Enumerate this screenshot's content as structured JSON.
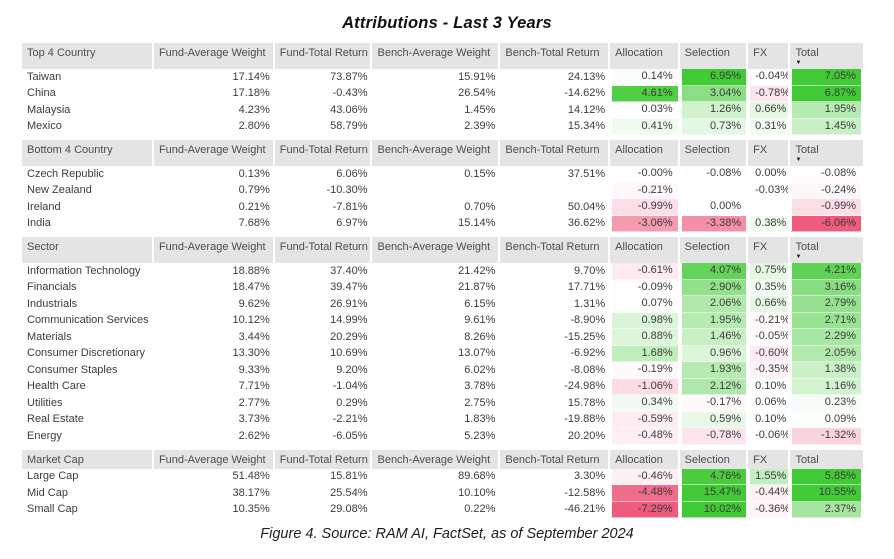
{
  "title": "Attributions - Last 3 Years",
  "caption": "Figure 4. Source: RAM AI, FactSet, as of September 2024",
  "colors": {
    "header_bg": "#e4e4e4",
    "header_text": "#4d4d4d",
    "cell_text": "#3c3c3c",
    "positive_max": "#42c936",
    "negative_max": "#ed5b7d",
    "scale_cap_pct": 5
  },
  "value_columns": [
    "Fund-Average Weight",
    "Fund-Total Return",
    "Bench-Average Weight",
    "Bench-Total Return",
    "Allocation",
    "Selection",
    "FX",
    "Total"
  ],
  "heat_columns_start_index": 4,
  "chart_data": {
    "type": "table",
    "sections": [
      {
        "label": "Top 4 Country",
        "sort_arrow_on": "Total",
        "rows": [
          {
            "label": "Taiwan",
            "values": [
              "17.14%",
              "73.87%",
              "15.91%",
              "24.13%",
              "0.14%",
              "6.95%",
              "-0.04%",
              "7.05%"
            ]
          },
          {
            "label": "China",
            "values": [
              "17.18%",
              "-0.43%",
              "26.54%",
              "-14.62%",
              "4.61%",
              "3.04%",
              "-0.78%",
              "6.87%"
            ]
          },
          {
            "label": "Malaysia",
            "values": [
              "4.23%",
              "43.06%",
              "1.45%",
              "14.12%",
              "0.03%",
              "1.26%",
              "0.66%",
              "1.95%"
            ]
          },
          {
            "label": "Mexico",
            "values": [
              "2.80%",
              "58.79%",
              "2.39%",
              "15.34%",
              "0.41%",
              "0.73%",
              "0.31%",
              "1.45%"
            ]
          }
        ]
      },
      {
        "label": "Bottom 4 Country",
        "sort_arrow_on": "Total",
        "rows": [
          {
            "label": "Czech Republic",
            "values": [
              "0.13%",
              "6.06%",
              "0.15%",
              "37.51%",
              "-0.00%",
              "-0.08%",
              "0.00%",
              "-0.08%"
            ]
          },
          {
            "label": "New Zealand",
            "values": [
              "0.79%",
              "-10.30%",
              "",
              "",
              "-0.21%",
              "",
              "-0.03%",
              "-0.24%"
            ]
          },
          {
            "label": "Ireland",
            "values": [
              "0.21%",
              "-7.81%",
              "0.70%",
              "50.04%",
              "-0.99%",
              "0.00%",
              "",
              "-0.99%"
            ]
          },
          {
            "label": "India",
            "values": [
              "7.68%",
              "6.97%",
              "15.14%",
              "36.62%",
              "-3.06%",
              "-3.38%",
              "0.38%",
              "-6.06%"
            ]
          }
        ]
      },
      {
        "label": "Sector",
        "sort_arrow_on": "Total",
        "rows": [
          {
            "label": "Information Technology",
            "values": [
              "18.88%",
              "37.40%",
              "21.42%",
              "9.70%",
              "-0.61%",
              "4.07%",
              "0.75%",
              "4.21%"
            ]
          },
          {
            "label": "Financials",
            "values": [
              "18.47%",
              "39.47%",
              "21.87%",
              "17.71%",
              "-0.09%",
              "2.90%",
              "0.35%",
              "3.16%"
            ]
          },
          {
            "label": "Industrials",
            "values": [
              "9.62%",
              "26.91%",
              "6.15%",
              "1.31%",
              "0.07%",
              "2.06%",
              "0.66%",
              "2.79%"
            ]
          },
          {
            "label": "Communication Services",
            "values": [
              "10.12%",
              "14.99%",
              "9.61%",
              "-8.90%",
              "0.98%",
              "1.95%",
              "-0.21%",
              "2.71%"
            ]
          },
          {
            "label": "Materials",
            "values": [
              "3.44%",
              "20.29%",
              "8.26%",
              "-15.25%",
              "0.88%",
              "1.46%",
              "-0.05%",
              "2.29%"
            ]
          },
          {
            "label": "Consumer Discretionary",
            "values": [
              "13.30%",
              "10.69%",
              "13.07%",
              "-6.92%",
              "1.68%",
              "0.96%",
              "-0.60%",
              "2.05%"
            ]
          },
          {
            "label": "Consumer Staples",
            "values": [
              "9.33%",
              "9.20%",
              "6.02%",
              "-8.08%",
              "-0.19%",
              "1.93%",
              "-0.35%",
              "1.38%"
            ]
          },
          {
            "label": "Health Care",
            "values": [
              "7.71%",
              "-1.04%",
              "3.78%",
              "-24.98%",
              "-1.06%",
              "2.12%",
              "0.10%",
              "1.16%"
            ]
          },
          {
            "label": "Utilities",
            "values": [
              "2.77%",
              "0.29%",
              "2.75%",
              "15.78%",
              "0.34%",
              "-0.17%",
              "0.06%",
              "0.23%"
            ]
          },
          {
            "label": "Real Estate",
            "values": [
              "3.73%",
              "-2.21%",
              "1.83%",
              "-19.88%",
              "-0.59%",
              "0.59%",
              "0.10%",
              "0.09%"
            ]
          },
          {
            "label": "Energy",
            "values": [
              "2.62%",
              "-6.05%",
              "5.23%",
              "20.20%",
              "-0.48%",
              "-0.78%",
              "-0.06%",
              "-1.32%"
            ]
          }
        ]
      },
      {
        "label": "Market Cap",
        "sort_arrow_on": null,
        "rows": [
          {
            "label": "Large Cap",
            "values": [
              "51.48%",
              "15.81%",
              "89.68%",
              "3.30%",
              "-0.46%",
              "4.76%",
              "1.55%",
              "5.85%"
            ]
          },
          {
            "label": "Mid Cap",
            "values": [
              "38.17%",
              "25.54%",
              "10.10%",
              "-12.58%",
              "-4.48%",
              "15.47%",
              "-0.44%",
              "10.55%"
            ]
          },
          {
            "label": "Small Cap",
            "values": [
              "10.35%",
              "29.08%",
              "0.22%",
              "-46.21%",
              "-7.29%",
              "10.02%",
              "-0.36%",
              "2.37%"
            ]
          }
        ]
      }
    ]
  }
}
